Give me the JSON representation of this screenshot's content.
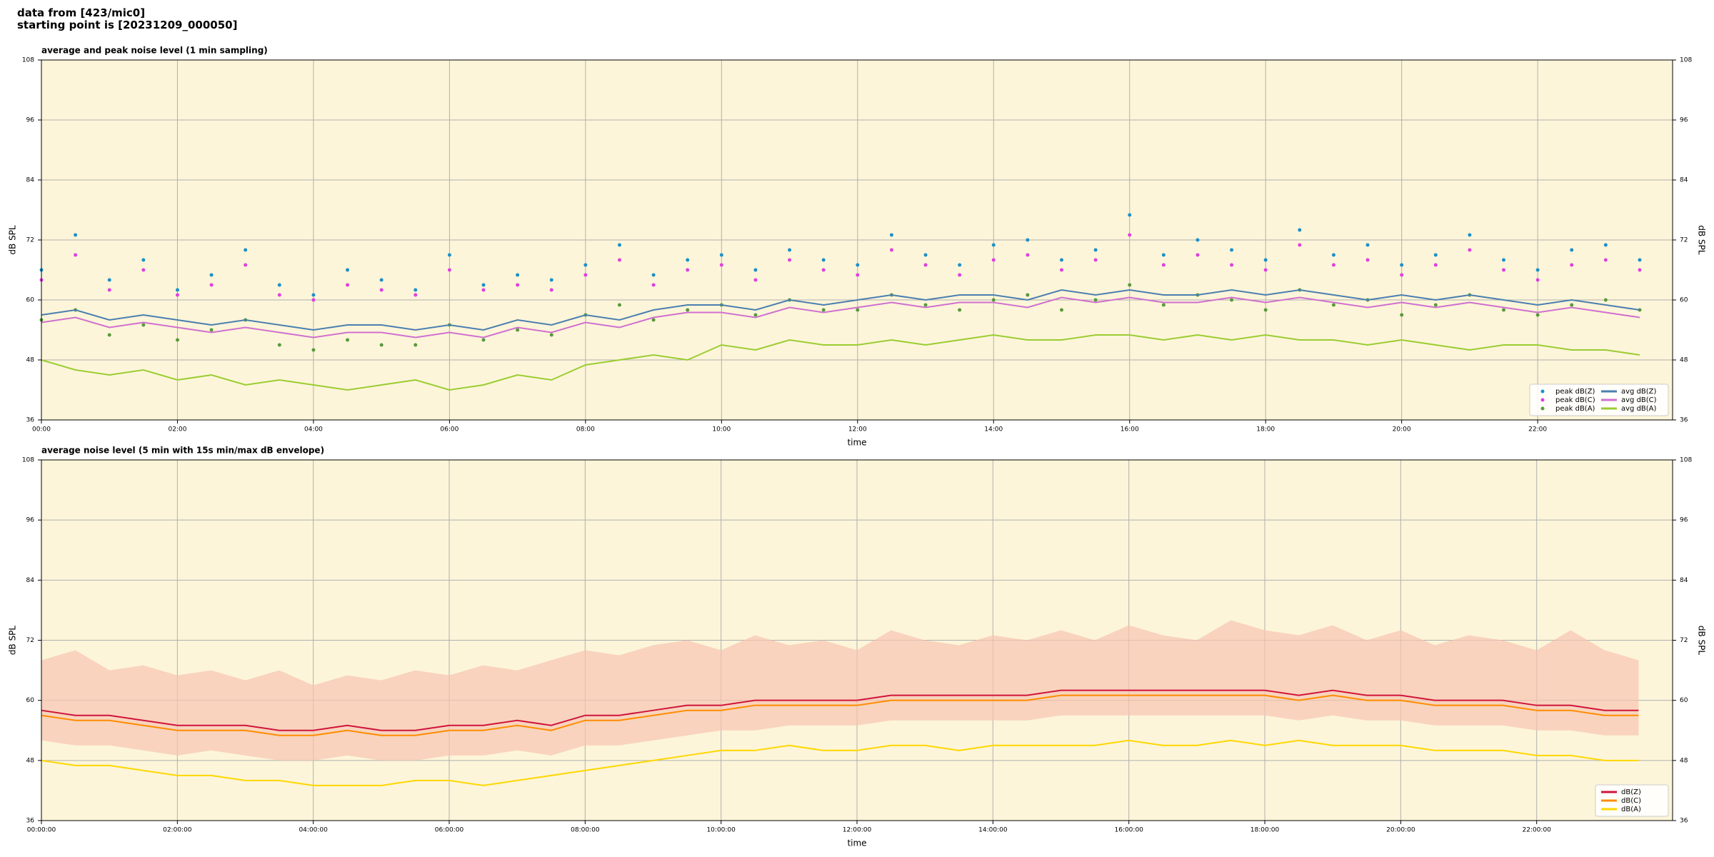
{
  "header": {
    "lines": [
      "data from [423/mic0]",
      "starting point is [20231209_000050]"
    ]
  },
  "chart_data": [
    {
      "type": "line",
      "title": "average and peak noise level (1 min sampling)",
      "xlabel": "time",
      "ylabel": "dB SPL",
      "x": [
        "00:00",
        "00:30",
        "01:00",
        "01:30",
        "02:00",
        "02:30",
        "03:00",
        "03:30",
        "04:00",
        "04:30",
        "05:00",
        "05:30",
        "06:00",
        "06:30",
        "07:00",
        "07:30",
        "08:00",
        "08:30",
        "09:00",
        "09:30",
        "10:00",
        "10:30",
        "11:00",
        "11:30",
        "12:00",
        "12:30",
        "13:00",
        "13:30",
        "14:00",
        "14:30",
        "15:00",
        "15:30",
        "16:00",
        "16:30",
        "17:00",
        "17:30",
        "18:00",
        "18:30",
        "19:00",
        "19:30",
        "20:00",
        "20:30",
        "21:00",
        "21:30",
        "22:00",
        "22:30",
        "23:00",
        "23:30"
      ],
      "xlim": [
        "00:00",
        "23:59"
      ],
      "xticks": [
        "00:00",
        "02:00",
        "04:00",
        "06:00",
        "08:00",
        "10:00",
        "12:00",
        "14:00",
        "16:00",
        "18:00",
        "20:00",
        "22:00"
      ],
      "ylim": [
        36,
        108
      ],
      "yticks": [
        36,
        48,
        60,
        72,
        84,
        96,
        108
      ],
      "grid": true,
      "legend": "lower right",
      "legend_columns": 2,
      "background": "#fdf5d9",
      "series": [
        {
          "name": "peak dB(Z)",
          "type": "scatter",
          "color": "#1e90c8",
          "values": [
            66,
            73,
            64,
            68,
            62,
            65,
            70,
            63,
            61,
            66,
            64,
            62,
            69,
            63,
            65,
            64,
            67,
            71,
            65,
            68,
            69,
            66,
            70,
            68,
            67,
            73,
            69,
            67,
            71,
            72,
            68,
            70,
            77,
            69,
            72,
            70,
            68,
            74,
            69,
            71,
            67,
            69,
            73,
            68,
            66,
            70,
            71,
            68
          ]
        },
        {
          "name": "peak dB(C)",
          "type": "scatter",
          "color": "#e040e0",
          "values": [
            64,
            69,
            62,
            66,
            61,
            63,
            67,
            61,
            60,
            63,
            62,
            61,
            66,
            62,
            63,
            62,
            65,
            68,
            63,
            66,
            67,
            64,
            68,
            66,
            65,
            70,
            67,
            65,
            68,
            69,
            66,
            68,
            73,
            67,
            69,
            67,
            66,
            71,
            67,
            68,
            65,
            67,
            70,
            66,
            64,
            67,
            68,
            66
          ]
        },
        {
          "name": "peak dB(A)",
          "type": "scatter",
          "color": "#5a9a3a",
          "values": [
            56,
            58,
            53,
            55,
            52,
            54,
            56,
            51,
            50,
            52,
            51,
            51,
            55,
            52,
            54,
            53,
            57,
            59,
            56,
            58,
            59,
            57,
            60,
            58,
            58,
            61,
            59,
            58,
            60,
            61,
            58,
            60,
            63,
            59,
            61,
            60,
            58,
            62,
            59,
            60,
            57,
            59,
            61,
            58,
            57,
            59,
            60,
            58
          ]
        },
        {
          "name": "avg dB(Z)",
          "type": "line",
          "color": "#4a7fb0",
          "values": [
            57,
            58,
            56,
            57,
            56,
            55,
            56,
            55,
            54,
            55,
            55,
            54,
            55,
            54,
            56,
            55,
            57,
            56,
            58,
            59,
            59,
            58,
            60,
            59,
            60,
            61,
            60,
            61,
            61,
            60,
            62,
            61,
            62,
            61,
            61,
            62,
            61,
            62,
            61,
            60,
            61,
            60,
            61,
            60,
            59,
            60,
            59,
            58
          ]
        },
        {
          "name": "avg dB(C)",
          "type": "line",
          "color": "#d070d0",
          "values": [
            55.5,
            56.5,
            54.5,
            55.5,
            54.5,
            53.5,
            54.5,
            53.5,
            52.5,
            53.5,
            53.5,
            52.5,
            53.5,
            52.5,
            54.5,
            53.5,
            55.5,
            54.5,
            56.5,
            57.5,
            57.5,
            56.5,
            58.5,
            57.5,
            58.5,
            59.5,
            58.5,
            59.5,
            59.5,
            58.5,
            60.5,
            59.5,
            60.5,
            59.5,
            59.5,
            60.5,
            59.5,
            60.5,
            59.5,
            58.5,
            59.5,
            58.5,
            59.5,
            58.5,
            57.5,
            58.5,
            57.5,
            56.5
          ]
        },
        {
          "name": "avg dB(A)",
          "type": "line",
          "color": "#9acd32",
          "values": [
            48,
            46,
            45,
            46,
            44,
            45,
            43,
            44,
            43,
            42,
            43,
            44,
            42,
            43,
            45,
            44,
            47,
            48,
            49,
            48,
            51,
            50,
            52,
            51,
            51,
            52,
            51,
            52,
            53,
            52,
            52,
            53,
            53,
            52,
            53,
            52,
            53,
            52,
            52,
            51,
            52,
            51,
            50,
            51,
            51,
            50,
            50,
            49
          ]
        }
      ]
    },
    {
      "type": "line",
      "title": "average noise level (5 min with 15s min/max dB envelope)",
      "xlabel": "time",
      "ylabel": "dB SPL",
      "x": [
        "00:00:00",
        "00:30:00",
        "01:00:00",
        "01:30:00",
        "02:00:00",
        "02:30:00",
        "03:00:00",
        "03:30:00",
        "04:00:00",
        "04:30:00",
        "05:00:00",
        "05:30:00",
        "06:00:00",
        "06:30:00",
        "07:00:00",
        "07:30:00",
        "08:00:00",
        "08:30:00",
        "09:00:00",
        "09:30:00",
        "10:00:00",
        "10:30:00",
        "11:00:00",
        "11:30:00",
        "12:00:00",
        "12:30:00",
        "13:00:00",
        "13:30:00",
        "14:00:00",
        "14:30:00",
        "15:00:00",
        "15:30:00",
        "16:00:00",
        "16:30:00",
        "17:00:00",
        "17:30:00",
        "18:00:00",
        "18:30:00",
        "19:00:00",
        "19:30:00",
        "20:00:00",
        "20:30:00",
        "21:00:00",
        "21:30:00",
        "22:00:00",
        "22:30:00",
        "23:00:00",
        "23:30:00"
      ],
      "xlim": [
        "00:00:00",
        "23:59:59"
      ],
      "xticks": [
        "00:00:00",
        "02:00:00",
        "04:00:00",
        "06:00:00",
        "08:00:00",
        "10:00:00",
        "12:00:00",
        "14:00:00",
        "16:00:00",
        "18:00:00",
        "20:00:00",
        "22:00:00"
      ],
      "ylim": [
        36,
        108
      ],
      "yticks": [
        36,
        48,
        60,
        72,
        84,
        96,
        108
      ],
      "grid": true,
      "legend": "lower right",
      "legend_columns": 1,
      "background": "#fdf5d9",
      "envelope": {
        "color": "#f6c4b0",
        "high": [
          68,
          70,
          66,
          67,
          65,
          66,
          64,
          66,
          63,
          65,
          64,
          66,
          65,
          67,
          66,
          68,
          70,
          69,
          71,
          72,
          70,
          73,
          71,
          72,
          70,
          74,
          72,
          71,
          73,
          72,
          74,
          72,
          75,
          73,
          72,
          76,
          74,
          73,
          75,
          72,
          74,
          71,
          73,
          72,
          70,
          74,
          70,
          68
        ],
        "low": [
          52,
          51,
          51,
          50,
          49,
          50,
          49,
          48,
          48,
          49,
          48,
          48,
          49,
          49,
          50,
          49,
          51,
          51,
          52,
          53,
          54,
          54,
          55,
          55,
          55,
          56,
          56,
          56,
          56,
          56,
          57,
          57,
          57,
          57,
          57,
          57,
          57,
          56,
          57,
          56,
          56,
          55,
          55,
          55,
          54,
          54,
          53,
          53
        ]
      },
      "series": [
        {
          "name": "dB(Z)",
          "type": "line",
          "color": "#d0143c",
          "values": [
            58,
            57,
            57,
            56,
            55,
            55,
            55,
            54,
            54,
            55,
            54,
            54,
            55,
            55,
            56,
            55,
            57,
            57,
            58,
            59,
            59,
            60,
            60,
            60,
            60,
            61,
            61,
            61,
            61,
            61,
            62,
            62,
            62,
            62,
            62,
            62,
            62,
            61,
            62,
            61,
            61,
            60,
            60,
            60,
            59,
            59,
            58,
            58
          ]
        },
        {
          "name": "dB(C)",
          "type": "line",
          "color": "#ff8c00",
          "values": [
            57,
            56,
            56,
            55,
            54,
            54,
            54,
            53,
            53,
            54,
            53,
            53,
            54,
            54,
            55,
            54,
            56,
            56,
            57,
            58,
            58,
            59,
            59,
            59,
            59,
            60,
            60,
            60,
            60,
            60,
            61,
            61,
            61,
            61,
            61,
            61,
            61,
            60,
            61,
            60,
            60,
            59,
            59,
            59,
            58,
            58,
            57,
            57
          ]
        },
        {
          "name": "dB(A)",
          "type": "line",
          "color": "#ffd700",
          "values": [
            48,
            47,
            47,
            46,
            45,
            45,
            44,
            44,
            43,
            43,
            43,
            44,
            44,
            43,
            44,
            45,
            46,
            47,
            48,
            49,
            50,
            50,
            51,
            50,
            50,
            51,
            51,
            50,
            51,
            51,
            51,
            51,
            52,
            51,
            51,
            52,
            51,
            52,
            51,
            51,
            51,
            50,
            50,
            50,
            49,
            49,
            48,
            48
          ]
        }
      ]
    }
  ]
}
